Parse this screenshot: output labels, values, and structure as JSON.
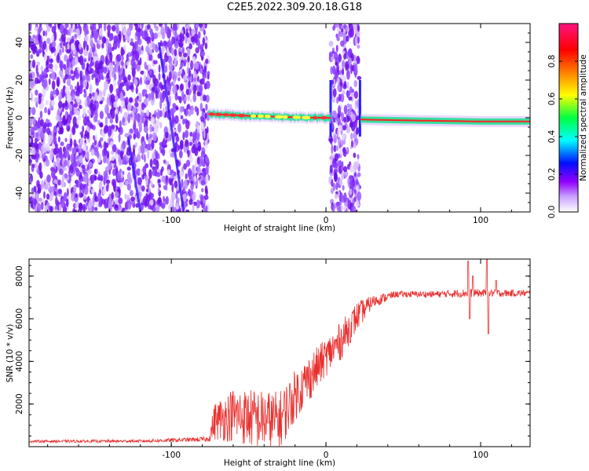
{
  "title": "C2E5.2022.309.20.18.G18",
  "colors": {
    "snr_line": "#e8302e",
    "spectrogram_speckle": "#8a3cff",
    "track_core": "#ff2020",
    "track_halo": "#20e090"
  },
  "chart_data": [
    {
      "type": "heatmap",
      "xlabel": "Height of straight line (km)",
      "ylabel": "Frequency (Hz)",
      "xlim": [
        -192,
        132
      ],
      "ylim": [
        -50,
        50
      ],
      "xticks": [
        -100,
        0,
        100
      ],
      "yticks": [
        -40,
        -20,
        0,
        20,
        40
      ],
      "colorbar": {
        "label": "Normalized spectral amplitude",
        "range": [
          0,
          1
        ],
        "ticks": [
          "0.0",
          "0.2",
          "0.4",
          "0.6",
          "0.8"
        ],
        "colormap": [
          "#ffffff",
          "#9400ff",
          "#0000ff",
          "#00ffff",
          "#00ff00",
          "#ffff00",
          "#ff8000",
          "#ff0000",
          "#ff1493"
        ]
      },
      "noise_regions_km": [
        [
          -192,
          -76
        ],
        [
          3,
          22
        ]
      ],
      "track": {
        "description_points": [
          {
            "x": -76,
            "y": 2
          },
          {
            "x": -50,
            "y": 1
          },
          {
            "x": -30,
            "y": 0.5
          },
          {
            "x": -10,
            "y": 0
          },
          {
            "x": 0,
            "y": 0
          },
          {
            "x": 25,
            "y": -1
          },
          {
            "x": 60,
            "y": -1.5
          },
          {
            "x": 100,
            "y": -2
          },
          {
            "x": 132,
            "y": -2
          }
        ]
      },
      "streaks": [
        {
          "x1": -108,
          "y1": 40,
          "x2": -92,
          "y2": -50
        },
        {
          "x1": -128,
          "y1": -10,
          "x2": -120,
          "y2": -50
        }
      ]
    },
    {
      "type": "line",
      "xlabel": "Height of straight line (km)",
      "ylabel": "SNR (10 * v/v)",
      "xlim": [
        -192,
        132
      ],
      "ylim": [
        0,
        8800
      ],
      "xticks": [
        -100,
        0,
        100
      ],
      "yticks": [
        2000,
        4000,
        6000,
        8000
      ],
      "series": [
        {
          "envelope": [
            {
              "x": -192,
              "mean": 250,
              "noise": 60
            },
            {
              "x": -120,
              "mean": 260,
              "noise": 70
            },
            {
              "x": -76,
              "mean": 350,
              "noise": 120
            },
            {
              "x": -72,
              "mean": 1200,
              "noise": 900
            },
            {
              "x": -60,
              "mean": 1500,
              "noise": 1300
            },
            {
              "x": -45,
              "mean": 1300,
              "noise": 1400
            },
            {
              "x": -30,
              "mean": 1200,
              "noise": 1400
            },
            {
              "x": -20,
              "mean": 2400,
              "noise": 1200
            },
            {
              "x": -10,
              "mean": 3300,
              "noise": 1100
            },
            {
              "x": 0,
              "mean": 4200,
              "noise": 900
            },
            {
              "x": 10,
              "mean": 5000,
              "noise": 900
            },
            {
              "x": 20,
              "mean": 6100,
              "noise": 700
            },
            {
              "x": 30,
              "mean": 6800,
              "noise": 300
            },
            {
              "x": 45,
              "mean": 7150,
              "noise": 150
            },
            {
              "x": 70,
              "mean": 7150,
              "noise": 150
            },
            {
              "x": 90,
              "mean": 7200,
              "noise": 200
            },
            {
              "x": 132,
              "mean": 7200,
              "noise": 150
            }
          ],
          "spikes": [
            {
              "x": 92,
              "y": 8700
            },
            {
              "x": 93,
              "y": 6000
            },
            {
              "x": 95,
              "y": 8000
            },
            {
              "x": 104,
              "y": 8800
            },
            {
              "x": 105,
              "y": 5300
            },
            {
              "x": 110,
              "y": 7800
            }
          ]
        }
      ]
    }
  ]
}
